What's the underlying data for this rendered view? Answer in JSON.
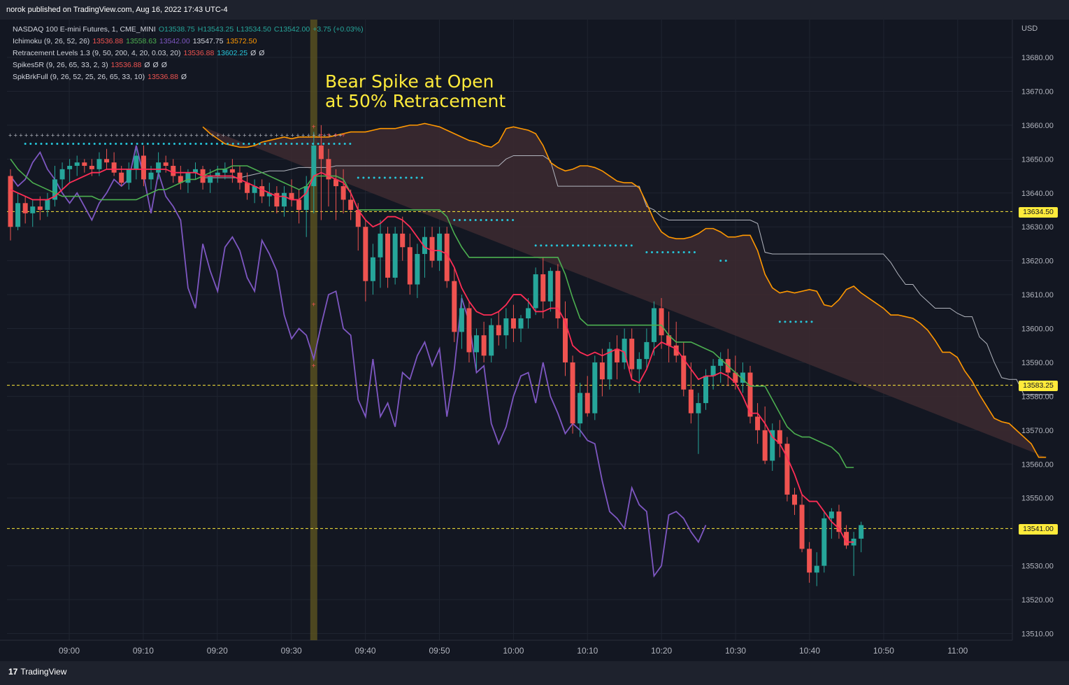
{
  "header": {
    "published": "norok published on TradingView.com, Aug 16, 2022 17:43 UTC-4"
  },
  "legend": {
    "symbol": "NASDAQ 100 E-mini Futures, 1, CME_MINI",
    "o": "O13538.75",
    "h": "H13543.25",
    "l": "L13534.50",
    "c": "C13542.00",
    "chg": "+3.75 (+0.03%)",
    "ichimoku_label": "Ichimoku (9, 26, 52, 26)",
    "ichimoku_vals": [
      "13536.88",
      "13558.63",
      "13542.00",
      "13547.75",
      "13572.50"
    ],
    "retr_label": "Retracement Levels 1.3 (9, 50, 200, 4, 20, 0.03, 20)",
    "retr_vals": [
      "13536.88",
      "13602.25",
      "Ø",
      "Ø"
    ],
    "spikes_label": "Spikes5R (9, 26, 65, 33, 2, 3)",
    "spikes_vals": [
      "13536.88",
      "Ø",
      "Ø",
      "Ø"
    ],
    "spk_label": "SpkBrkFull (9, 26, 52, 25, 26, 65, 33, 10)",
    "spk_vals": [
      "13536.88",
      "Ø"
    ]
  },
  "annotation": {
    "line1": "Bear Spike at Open",
    "line2": "at 50% Retracement"
  },
  "price_boxes": [
    "13634.50",
    "13583.25",
    "13541.00"
  ],
  "footer": {
    "brand": "TradingView"
  },
  "colors": {
    "up": "#26a69a",
    "down": "#ef5350",
    "tenkan": "#ff2d55",
    "kijun": "#4caf50",
    "chikou": "#7e57c2",
    "spanA": "#ff9800",
    "spanB": "#b2b5be",
    "cloud": "#3d2a30",
    "highlight": "#5c5420",
    "level": "#ffeb3b",
    "dots": "#26c6da"
  },
  "chart_data": {
    "type": "candlestick",
    "currency": "USD",
    "y_ticks": [
      13680,
      13670,
      13660,
      13650,
      13640,
      13630,
      13620,
      13610,
      13600,
      13590,
      13580,
      13570,
      13560,
      13550,
      13530,
      13520,
      13510
    ],
    "x_ticks": [
      "09:00",
      "09:10",
      "09:20",
      "09:30",
      "09:40",
      "09:50",
      "10:00",
      "10:10",
      "10:20",
      "10:30",
      "10:40",
      "10:50",
      "11:00"
    ],
    "levels": [
      13634.5,
      13583.25,
      13541.0
    ],
    "highlight_time": "09:33",
    "candles": [
      [
        13645,
        13647,
        13626,
        13630
      ],
      [
        13630,
        13640,
        13629,
        13637
      ],
      [
        13637,
        13639,
        13631,
        13634
      ],
      [
        13634,
        13638,
        13630,
        13636
      ],
      [
        13636,
        13639,
        13632,
        13635
      ],
      [
        13635,
        13640,
        13633,
        13638
      ],
      [
        13638,
        13648,
        13636,
        13644
      ],
      [
        13644,
        13649,
        13641,
        13647
      ],
      [
        13647,
        13650,
        13643,
        13648
      ],
      [
        13648,
        13651,
        13645,
        13649
      ],
      [
        13649,
        13650,
        13646,
        13648
      ],
      [
        13648,
        13650,
        13645,
        13647
      ],
      [
        13647,
        13652,
        13645,
        13650
      ],
      [
        13650,
        13653,
        13647,
        13649
      ],
      [
        13649,
        13652,
        13645,
        13646
      ],
      [
        13646,
        13648,
        13642,
        13643
      ],
      [
        13643,
        13649,
        13641,
        13647
      ],
      [
        13647,
        13653,
        13644,
        13651
      ],
      [
        13651,
        13654,
        13642,
        13644
      ],
      [
        13644,
        13648,
        13641,
        13646
      ],
      [
        13646,
        13652,
        13644,
        13649
      ],
      [
        13649,
        13651,
        13646,
        13648
      ],
      [
        13648,
        13650,
        13643,
        13645
      ],
      [
        13645,
        13648,
        13641,
        13643
      ],
      [
        13643,
        13647,
        13640,
        13646
      ],
      [
        13646,
        13649,
        13644,
        13647
      ],
      [
        13647,
        13648,
        13641,
        13643
      ],
      [
        13643,
        13647,
        13640,
        13645
      ],
      [
        13645,
        13648,
        13643,
        13646
      ],
      [
        13646,
        13649,
        13644,
        13647
      ],
      [
        13647,
        13650,
        13643,
        13646
      ],
      [
        13646,
        13648,
        13641,
        13643
      ],
      [
        13643,
        13646,
        13638,
        13640
      ],
      [
        13640,
        13644,
        13637,
        13642
      ],
      [
        13642,
        13644,
        13637,
        13639
      ],
      [
        13639,
        13643,
        13636,
        13640
      ],
      [
        13640,
        13642,
        13634,
        13636
      ],
      [
        13636,
        13642,
        13633,
        13640
      ],
      [
        13640,
        13644,
        13636,
        13638
      ],
      [
        13638,
        13641,
        13631,
        13635
      ],
      [
        13635,
        13645,
        13627,
        13642
      ],
      [
        13642,
        13658,
        13634,
        13654
      ],
      [
        13654,
        13660,
        13632,
        13650
      ],
      [
        13650,
        13653,
        13636,
        13644
      ],
      [
        13644,
        13647,
        13632,
        13642
      ],
      [
        13642,
        13647,
        13634,
        13638
      ],
      [
        13638,
        13641,
        13632,
        13635
      ],
      [
        13635,
        13637,
        13623,
        13630
      ],
      [
        13630,
        13632,
        13608,
        13614
      ],
      [
        13614,
        13625,
        13610,
        13621
      ],
      [
        13621,
        13632,
        13612,
        13628
      ],
      [
        13628,
        13630,
        13612,
        13615
      ],
      [
        13615,
        13630,
        13613,
        13628
      ],
      [
        13628,
        13633,
        13620,
        13624
      ],
      [
        13624,
        13628,
        13610,
        13613
      ],
      [
        13613,
        13625,
        13609,
        13622
      ],
      [
        13622,
        13630,
        13615,
        13627
      ],
      [
        13627,
        13630,
        13618,
        13620
      ],
      [
        13620,
        13630,
        13617,
        13628
      ],
      [
        13628,
        13630,
        13612,
        13614
      ],
      [
        13614,
        13618,
        13596,
        13599
      ],
      [
        13599,
        13610,
        13594,
        13606
      ],
      [
        13606,
        13608,
        13590,
        13593
      ],
      [
        13593,
        13600,
        13588,
        13598
      ],
      [
        13598,
        13602,
        13590,
        13592
      ],
      [
        13592,
        13603,
        13590,
        13601
      ],
      [
        13601,
        13605,
        13595,
        13598
      ],
      [
        13598,
        13606,
        13594,
        13603
      ],
      [
        13603,
        13607,
        13596,
        13600
      ],
      [
        13600,
        13604,
        13596,
        13603
      ],
      [
        13603,
        13609,
        13600,
        13606
      ],
      [
        13606,
        13618,
        13604,
        13616
      ],
      [
        13616,
        13621,
        13603,
        13608
      ],
      [
        13608,
        13618,
        13605,
        13617
      ],
      [
        13617,
        13619,
        13600,
        13603
      ],
      [
        13603,
        13608,
        13586,
        13590
      ],
      [
        13590,
        13592,
        13569,
        13572
      ],
      [
        13572,
        13584,
        13568,
        13581
      ],
      [
        13581,
        13586,
        13574,
        13575
      ],
      [
        13575,
        13592,
        13573,
        13590
      ],
      [
        13590,
        13594,
        13580,
        13585
      ],
      [
        13585,
        13596,
        13582,
        13594
      ],
      [
        13594,
        13598,
        13585,
        13590
      ],
      [
        13590,
        13600,
        13588,
        13597
      ],
      [
        13597,
        13600,
        13585,
        13588
      ],
      [
        13588,
        13593,
        13581,
        13591
      ],
      [
        13591,
        13600,
        13588,
        13596
      ],
      [
        13596,
        13608,
        13592,
        13606
      ],
      [
        13606,
        13609,
        13594,
        13598
      ],
      [
        13598,
        13605,
        13590,
        13595
      ],
      [
        13595,
        13602,
        13590,
        13592
      ],
      [
        13592,
        13596,
        13580,
        13582
      ],
      [
        13582,
        13590,
        13572,
        13575
      ],
      [
        13575,
        13581,
        13563,
        13578
      ],
      [
        13578,
        13588,
        13576,
        13586
      ],
      [
        13586,
        13591,
        13582,
        13589
      ],
      [
        13589,
        13593,
        13584,
        13591
      ],
      [
        13591,
        13594,
        13583,
        13587
      ],
      [
        13587,
        13592,
        13582,
        13584
      ],
      [
        13584,
        13590,
        13581,
        13587
      ],
      [
        13587,
        13589,
        13572,
        13574
      ],
      [
        13574,
        13578,
        13566,
        13570
      ],
      [
        13570,
        13577,
        13560,
        13561
      ],
      [
        13561,
        13572,
        13558,
        13570
      ],
      [
        13570,
        13573,
        13562,
        13566
      ],
      [
        13566,
        13568,
        13549,
        13551
      ],
      [
        13551,
        13553,
        13545,
        13548
      ],
      [
        13548,
        13551,
        13534,
        13535
      ],
      [
        13535,
        13537,
        13525,
        13528
      ],
      [
        13528,
        13534,
        13524,
        13530
      ],
      [
        13530,
        13546,
        13528,
        13544
      ],
      [
        13544,
        13547,
        13538,
        13546
      ],
      [
        13546,
        13548,
        13538,
        13540
      ],
      [
        13540,
        13542,
        13535,
        13536
      ],
      [
        13536,
        13540,
        13527,
        13538
      ],
      [
        13538,
        13543,
        13534,
        13542
      ]
    ],
    "tenkan": [
      13641,
      13640,
      13639,
      13638,
      13638,
      13638,
      13639,
      13641,
      13643,
      13644,
      13645,
      13646,
      13646,
      13647,
      13647,
      13647,
      13647,
      13647,
      13647,
      13647,
      13647,
      13647,
      13646,
      13646,
      13646,
      13646,
      13645,
      13645,
      13645,
      13645,
      13645,
      13644,
      13643,
      13642,
      13641,
      13640,
      13639,
      13639,
      13638,
      13638,
      13640,
      13645,
      13646,
      13645,
      13644,
      13643,
      13640,
      13635,
      13632,
      13630,
      13631,
      13633,
      13633,
      13632,
      13630,
      13627,
      13624,
      13623,
      13623,
      13622,
      13618,
      13612,
      13608,
      13605,
      13604,
      13604,
      13605,
      13607,
      13610,
      13610,
      13608,
      13605,
      13605,
      13606,
      13606,
      13602,
      13595,
      13593,
      13592,
      13593,
      13592,
      13593,
      13594,
      13593,
      13585,
      13584,
      13588,
      13594,
      13596,
      13595,
      13594,
      13591,
      13588,
      13585,
      13586,
      13586,
      13587,
      13586,
      13584,
      13580,
      13575,
      13575,
      13572,
      13568,
      13566,
      13562,
      13557,
      13551,
      13549,
      13549,
      13546,
      13543,
      13541,
      13537,
      13537
    ],
    "kijun": [
      13650,
      13647,
      13645,
      13643,
      13642,
      13641,
      13640,
      13639,
      13639,
      13639,
      13639,
      13639,
      13638,
      13638,
      13638,
      13638,
      13638,
      13638,
      13639,
      13640,
      13641,
      13641,
      13642,
      13643,
      13644,
      13644,
      13645,
      13646,
      13647,
      13647,
      13648,
      13648,
      13648,
      13647,
      13646,
      13645,
      13644,
      13643,
      13642,
      13641,
      13642,
      13645,
      13645,
      13645,
      13645,
      13644,
      13640,
      13635,
      13635,
      13635,
      13635,
      13635,
      13635,
      13635,
      13635,
      13635,
      13635,
      13635,
      13635,
      13633,
      13628,
      13624,
      13621,
      13621,
      13621,
      13621,
      13621,
      13621,
      13621,
      13621,
      13621,
      13621,
      13621,
      13621,
      13621,
      13616,
      13609,
      13603,
      13601,
      13601,
      13601,
      13601,
      13601,
      13601,
      13601,
      13601,
      13601,
      13601,
      13601,
      13598,
      13596,
      13596,
      13596,
      13595,
      13594,
      13593,
      13591,
      13589,
      13587,
      13585,
      13583,
      13583,
      13583,
      13579,
      13575,
      13571,
      13569,
      13568,
      13568,
      13567,
      13566,
      13565,
      13563,
      13559,
      13559
    ],
    "chikou": [
      13645,
      13642,
      13644,
      13649,
      13652,
      13647,
      13644,
      13640,
      13637,
      13640,
      13636,
      13632,
      13637,
      13640,
      13644,
      13642,
      13644,
      13654,
      13645,
      13634,
      13646,
      13639,
      13636,
      13632,
      13612,
      13606,
      13625,
      13617,
      13611,
      13624,
      13627,
      13623,
      13615,
      13611,
      13626,
      13622,
      13617,
      13604,
      13597,
      13600,
      13598,
      13591,
      13601,
      13610,
      13611,
      13600,
      13598,
      13579,
      13574,
      13591,
      13574,
      13578,
      13571,
      13587,
      13585,
      13592,
      13596,
      13589,
      13594,
      13574,
      13588,
      13609,
      13602,
      13587,
      13589,
      13572,
      13566,
      13571,
      13580,
      13586,
      13587,
      13578,
      13590,
      13580,
      13575,
      13569,
      13572,
      13570,
      13567,
      13566,
      13555,
      13546,
      13544,
      13541,
      13553,
      13548,
      13546,
      13527,
      13530,
      13545,
      13546,
      13544,
      13540,
      13537,
      13542
    ]
  }
}
